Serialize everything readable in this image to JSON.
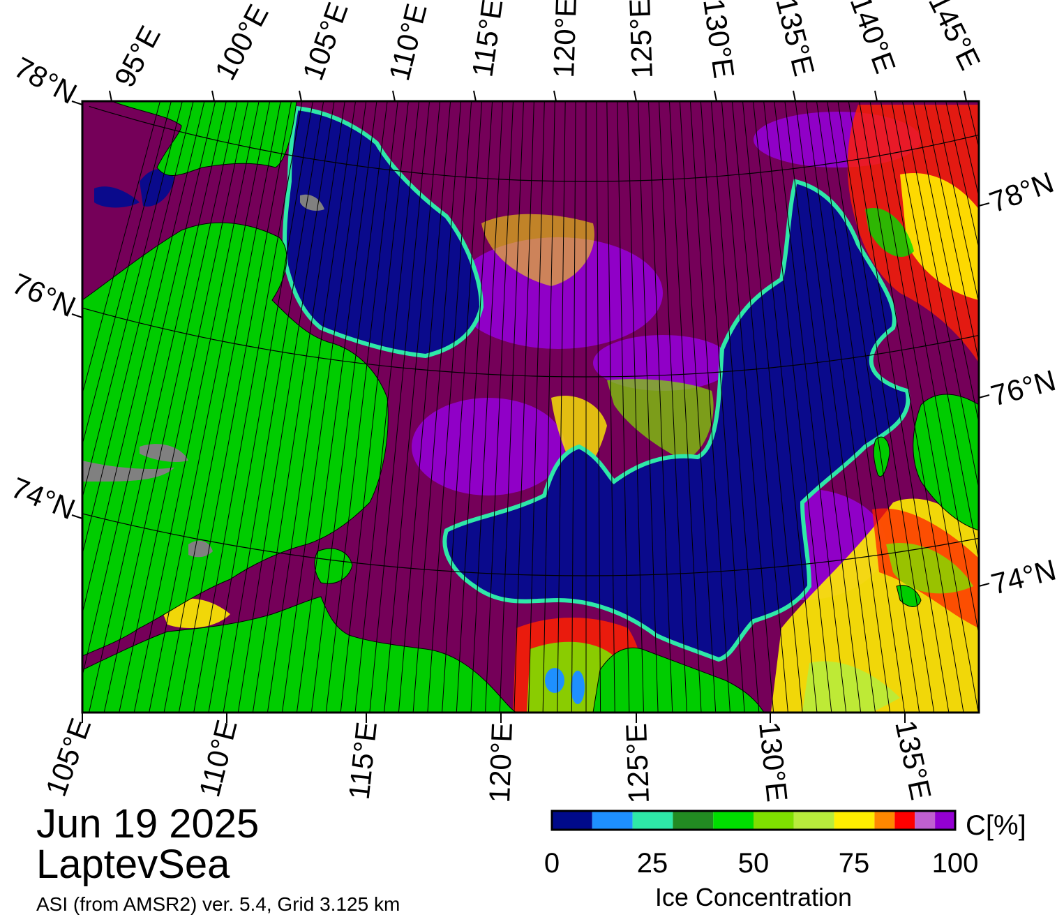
{
  "map": {
    "date": "Jun 19 2025",
    "region": "LaptevSea",
    "product": "ASI (from AMSR2) ver. 5.4,  Grid 3.125 km",
    "top_lon_labels": [
      "95°E",
      "100°E",
      "105°E",
      "110°E",
      "115°E",
      "120°E",
      "125°E",
      "130°E",
      "135°E",
      "140°E",
      "145°E"
    ],
    "bottom_lon_labels": [
      "105°E",
      "110°E",
      "115°E",
      "120°E",
      "125°E",
      "130°E",
      "135°E"
    ],
    "left_lat_labels": [
      "78°N",
      "76°N",
      "74°N"
    ],
    "right_lat_labels": [
      "78°N",
      "76°N",
      "74°N"
    ],
    "colors": {
      "open_water": "#0a0a8c",
      "land": "#00cc00",
      "land_ice": "#808080",
      "high_ice": "#750059",
      "ice_purple": "#9400d3"
    }
  },
  "colorbar": {
    "title": "Ice Concentration",
    "unit": "C[%]",
    "ticks": [
      "0",
      "25",
      "50",
      "75",
      "100"
    ],
    "colors": [
      "#000a8a",
      "#1e90ff",
      "#2ee8a8",
      "#228b22",
      "#00dd00",
      "#7fe000",
      "#b8ec3c",
      "#ffee00",
      "#ff8800",
      "#ff0000",
      "#c060d0",
      "#9400d3"
    ]
  }
}
